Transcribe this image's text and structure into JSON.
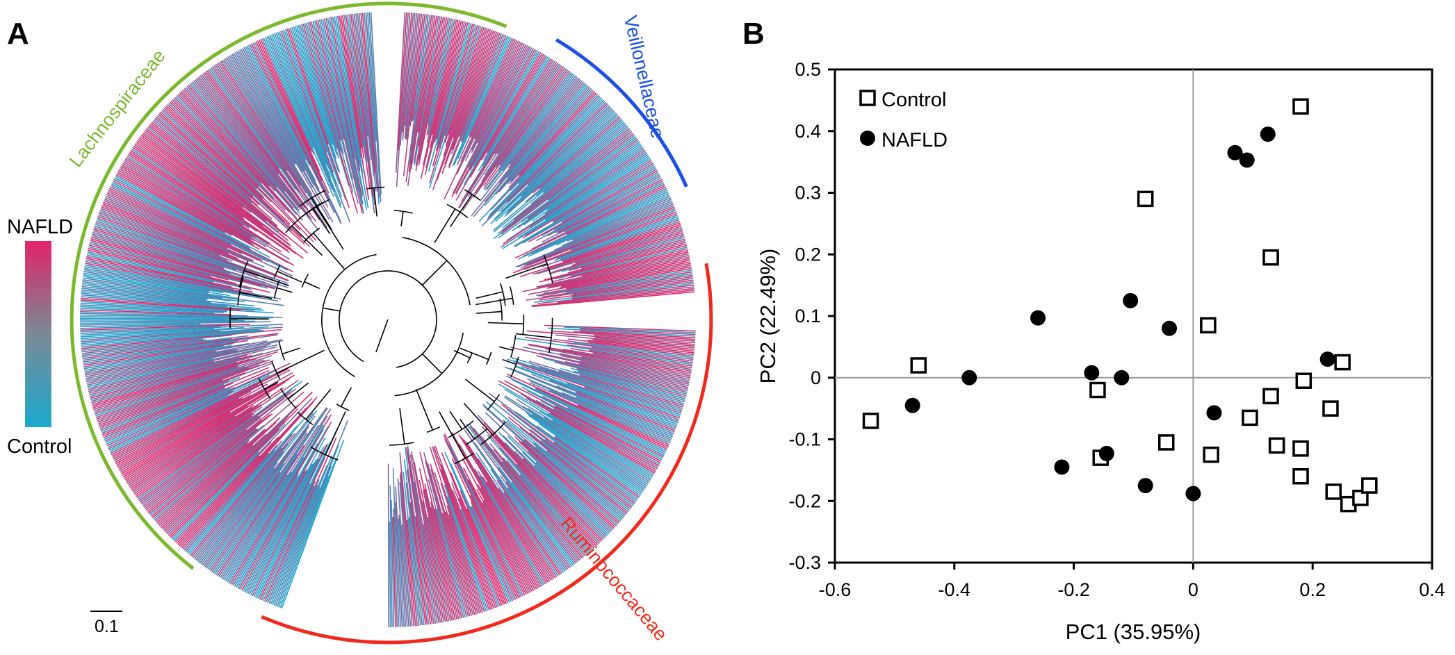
{
  "panels": {
    "a_label": "A",
    "b_label": "B"
  },
  "tree": {
    "color_scale": {
      "top_label": "NAFLD",
      "bottom_label": "Control",
      "top_color": "#e2236b",
      "bottom_color": "#1ba9cf"
    },
    "scale_bar_label": "0.1",
    "clades": [
      {
        "name": "Lachnospiraceae",
        "color": "#7ab82c"
      },
      {
        "name": "Veillonellaceae",
        "color": "#1a4fe6"
      },
      {
        "name": "Ruminococcaceae",
        "color": "#f0291a"
      }
    ]
  },
  "chart_data": {
    "type": "scatter",
    "xlabel": "PC1 (35.95%)",
    "ylabel": "PC2 (22.49%)",
    "xlim": [
      -0.6,
      0.4
    ],
    "ylim": [
      -0.3,
      0.5
    ],
    "xticks": [
      -0.6,
      -0.4,
      -0.2,
      0,
      0.2,
      0.4
    ],
    "yticks": [
      0.5,
      0.4,
      0.3,
      0.2,
      0.1,
      0,
      -0.1,
      -0.2,
      -0.3
    ],
    "xtick_labels": [
      "-0.6",
      "-0.4",
      "-0.2",
      "0",
      "0.2",
      "0.4"
    ],
    "ytick_labels": [
      "0.5",
      "0.4",
      "0.3",
      "0.2",
      "0.1",
      "0",
      "-0.1",
      "-0.2",
      "-0.3"
    ],
    "zero_lines": true,
    "legend_position": "top-left",
    "series": [
      {
        "name": "Control",
        "marker": "open-square",
        "points": [
          [
            -0.54,
            -0.07
          ],
          [
            -0.46,
            0.02
          ],
          [
            -0.16,
            -0.02
          ],
          [
            -0.155,
            -0.13
          ],
          [
            -0.08,
            0.29
          ],
          [
            -0.045,
            -0.105
          ],
          [
            0.025,
            0.085
          ],
          [
            0.03,
            -0.125
          ],
          [
            0.095,
            -0.065
          ],
          [
            0.13,
            0.195
          ],
          [
            0.13,
            -0.03
          ],
          [
            0.14,
            -0.11
          ],
          [
            0.18,
            0.44
          ],
          [
            0.18,
            -0.115
          ],
          [
            0.18,
            -0.16
          ],
          [
            0.185,
            -0.005
          ],
          [
            0.23,
            -0.05
          ],
          [
            0.235,
            -0.185
          ],
          [
            0.25,
            0.025
          ],
          [
            0.26,
            -0.205
          ],
          [
            0.28,
            -0.195
          ],
          [
            0.295,
            -0.175
          ]
        ]
      },
      {
        "name": "NAFLD",
        "marker": "filled-circle",
        "points": [
          [
            -0.47,
            -0.045
          ],
          [
            -0.375,
            0.0
          ],
          [
            -0.26,
            0.097
          ],
          [
            -0.22,
            -0.145
          ],
          [
            -0.17,
            0.008
          ],
          [
            -0.145,
            -0.123
          ],
          [
            -0.12,
            0.0
          ],
          [
            -0.105,
            0.125
          ],
          [
            -0.08,
            -0.175
          ],
          [
            -0.04,
            0.08
          ],
          [
            0.0,
            -0.188
          ],
          [
            0.035,
            -0.057
          ],
          [
            0.07,
            0.365
          ],
          [
            0.09,
            0.353
          ],
          [
            0.125,
            0.395
          ],
          [
            0.225,
            0.03
          ]
        ]
      }
    ]
  }
}
